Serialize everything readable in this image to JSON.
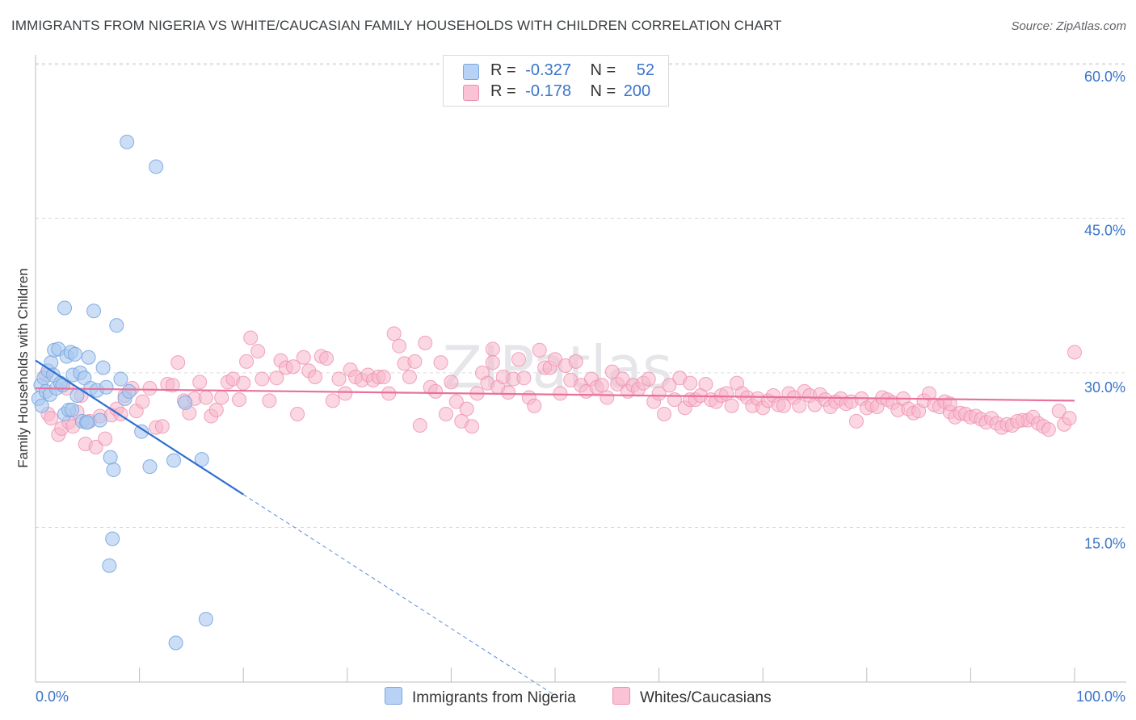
{
  "title": "IMMIGRANTS FROM NIGERIA VS WHITE/CAUCASIAN FAMILY HOUSEHOLDS WITH CHILDREN CORRELATION CHART",
  "source": "Source: ZipAtlas.com",
  "watermark": "ZIPatlas",
  "legend": {
    "rows": [
      {
        "r_label": "R =",
        "r_value": "-0.327",
        "n_label": "N =",
        "n_value": "52"
      },
      {
        "r_label": "R =",
        "r_value": "-0.178",
        "n_label": "N =",
        "n_value": "200"
      }
    ]
  },
  "chart_data": {
    "type": "scatter",
    "title": "IMMIGRANTS FROM NIGERIA VS WHITE/CAUCASIAN FAMILY HOUSEHOLDS WITH CHILDREN CORRELATION CHART",
    "xlabel": "",
    "ylabel": "Family Households with Children",
    "xlim": [
      0,
      100
    ],
    "ylim": [
      0,
      62
    ],
    "x_tick_labels": [
      "0.0%",
      "100.0%"
    ],
    "y_ticks": [
      15,
      30,
      45,
      60
    ],
    "y_tick_labels": [
      "15.0%",
      "30.0%",
      "45.0%",
      "60.0%"
    ],
    "colors": {
      "nigeria": "#a8c8f0",
      "nigeria_edge": "#7aa6e0",
      "white": "#f7b6cb",
      "white_edge": "#ee8fb0",
      "nigeria_line": "#2f6fd0",
      "white_line": "#e8709a"
    },
    "series": [
      {
        "name": "Immigrants from Nigeria",
        "r": -0.327,
        "n": 52,
        "trend": {
          "x0": 0,
          "y0": 31.2,
          "x1": 20,
          "y1": 18.2,
          "dash_to_x": 50
        },
        "points": [
          [
            0.3,
            27.5
          ],
          [
            0.5,
            28.8
          ],
          [
            0.6,
            26.8
          ],
          [
            0.8,
            29.5
          ],
          [
            1.0,
            28.2
          ],
          [
            1.2,
            30.2
          ],
          [
            1.4,
            27.9
          ],
          [
            1.5,
            31.0
          ],
          [
            1.7,
            29.8
          ],
          [
            1.8,
            32.2
          ],
          [
            2.0,
            28.5
          ],
          [
            2.2,
            32.3
          ],
          [
            2.4,
            29.0
          ],
          [
            2.6,
            28.8
          ],
          [
            2.8,
            26.0
          ],
          [
            3.0,
            31.6
          ],
          [
            3.2,
            26.4
          ],
          [
            3.4,
            32.0
          ],
          [
            3.6,
            29.8
          ],
          [
            3.8,
            31.8
          ],
          [
            4.0,
            27.8
          ],
          [
            4.3,
            30.0
          ],
          [
            4.5,
            25.3
          ],
          [
            4.7,
            29.5
          ],
          [
            4.9,
            25.2
          ],
          [
            5.1,
            31.5
          ],
          [
            5.3,
            28.5
          ],
          [
            5.6,
            36.0
          ],
          [
            5.9,
            28.3
          ],
          [
            6.2,
            25.4
          ],
          [
            6.5,
            30.5
          ],
          [
            6.8,
            28.6
          ],
          [
            7.2,
            21.8
          ],
          [
            7.5,
            20.6
          ],
          [
            7.8,
            34.6
          ],
          [
            8.2,
            29.4
          ],
          [
            8.6,
            27.5
          ],
          [
            9.0,
            28.2
          ],
          [
            2.8,
            36.3
          ],
          [
            7.4,
            13.9
          ],
          [
            7.1,
            11.3
          ],
          [
            10.2,
            24.3
          ],
          [
            11.0,
            20.9
          ],
          [
            13.3,
            21.5
          ],
          [
            14.4,
            27.1
          ],
          [
            16.0,
            21.6
          ],
          [
            16.4,
            6.1
          ],
          [
            8.8,
            52.4
          ],
          [
            11.6,
            50.0
          ],
          [
            13.5,
            3.8
          ],
          [
            3.5,
            26.4
          ],
          [
            5.0,
            25.2
          ]
        ]
      },
      {
        "name": "Whites/Caucasians",
        "r": -0.178,
        "n": 200,
        "trend": {
          "x0": 0,
          "y0": 28.5,
          "x1": 100,
          "y1": 27.3
        },
        "points": [
          [
            1.0,
            29.8
          ],
          [
            1.2,
            26.0
          ],
          [
            1.5,
            25.6
          ],
          [
            2.2,
            24.0
          ],
          [
            2.5,
            24.6
          ],
          [
            3.0,
            28.5
          ],
          [
            3.2,
            25.2
          ],
          [
            3.6,
            24.8
          ],
          [
            4.0,
            26.2
          ],
          [
            4.4,
            27.8
          ],
          [
            4.8,
            23.1
          ],
          [
            5.2,
            25.3
          ],
          [
            5.8,
            22.8
          ],
          [
            6.2,
            25.8
          ],
          [
            6.7,
            23.6
          ],
          [
            7.3,
            25.9
          ],
          [
            7.8,
            26.5
          ],
          [
            8.2,
            26.0
          ],
          [
            8.6,
            27.8
          ],
          [
            9.3,
            28.5
          ],
          [
            9.7,
            26.3
          ],
          [
            10.3,
            27.2
          ],
          [
            11.0,
            28.5
          ],
          [
            11.6,
            24.7
          ],
          [
            12.2,
            24.8
          ],
          [
            12.7,
            28.9
          ],
          [
            13.2,
            28.8
          ],
          [
            13.7,
            31.0
          ],
          [
            14.3,
            27.3
          ],
          [
            14.8,
            26.1
          ],
          [
            15.3,
            27.5
          ],
          [
            15.8,
            29.1
          ],
          [
            16.4,
            27.6
          ],
          [
            16.9,
            25.8
          ],
          [
            17.4,
            26.4
          ],
          [
            17.9,
            27.6
          ],
          [
            18.5,
            29.1
          ],
          [
            19.0,
            29.4
          ],
          [
            19.6,
            27.4
          ],
          [
            20.3,
            31.1
          ],
          [
            20.7,
            33.4
          ],
          [
            21.4,
            32.1
          ],
          [
            21.8,
            29.4
          ],
          [
            22.5,
            27.3
          ],
          [
            23.2,
            29.5
          ],
          [
            23.6,
            31.2
          ],
          [
            24.1,
            30.5
          ],
          [
            24.8,
            30.6
          ],
          [
            25.2,
            26.0
          ],
          [
            25.8,
            31.5
          ],
          [
            26.3,
            30.2
          ],
          [
            26.9,
            29.6
          ],
          [
            27.5,
            31.6
          ],
          [
            28.0,
            31.4
          ],
          [
            28.6,
            27.3
          ],
          [
            29.2,
            29.4
          ],
          [
            29.8,
            28.0
          ],
          [
            30.3,
            30.3
          ],
          [
            30.8,
            29.6
          ],
          [
            31.4,
            29.3
          ],
          [
            32.0,
            29.8
          ],
          [
            32.5,
            29.3
          ],
          [
            33.0,
            29.6
          ],
          [
            33.5,
            29.6
          ],
          [
            34.0,
            28.0
          ],
          [
            34.5,
            33.8
          ],
          [
            35.0,
            32.6
          ],
          [
            35.5,
            30.9
          ],
          [
            36.0,
            29.6
          ],
          [
            36.5,
            31.1
          ],
          [
            37.0,
            24.9
          ],
          [
            37.5,
            32.9
          ],
          [
            38.0,
            28.6
          ],
          [
            38.5,
            28.2
          ],
          [
            39.0,
            31.0
          ],
          [
            39.5,
            26.0
          ],
          [
            40.0,
            29.1
          ],
          [
            40.5,
            27.2
          ],
          [
            41.0,
            25.3
          ],
          [
            41.5,
            26.5
          ],
          [
            42.0,
            24.8
          ],
          [
            42.5,
            28.0
          ],
          [
            43.0,
            30.0
          ],
          [
            43.5,
            29.0
          ],
          [
            44.0,
            32.3
          ],
          [
            44.5,
            28.6
          ],
          [
            45.0,
            29.6
          ],
          [
            45.5,
            28.1
          ],
          [
            46.0,
            29.4
          ],
          [
            46.5,
            31.3
          ],
          [
            47.0,
            29.5
          ],
          [
            47.5,
            27.6
          ],
          [
            48.0,
            26.8
          ],
          [
            48.5,
            32.2
          ],
          [
            49.0,
            30.5
          ],
          [
            49.5,
            30.5
          ],
          [
            50.0,
            31.3
          ],
          [
            50.5,
            28.0
          ],
          [
            51.0,
            30.7
          ],
          [
            51.5,
            29.3
          ],
          [
            52.0,
            31.1
          ],
          [
            52.5,
            28.8
          ],
          [
            53.0,
            28.2
          ],
          [
            53.5,
            29.4
          ],
          [
            54.0,
            28.6
          ],
          [
            54.5,
            28.8
          ],
          [
            55.0,
            27.6
          ],
          [
            55.5,
            30.1
          ],
          [
            56.0,
            28.9
          ],
          [
            56.5,
            29.4
          ],
          [
            57.0,
            28.2
          ],
          [
            57.5,
            28.8
          ],
          [
            58.0,
            28.4
          ],
          [
            58.5,
            29.0
          ],
          [
            59.0,
            29.4
          ],
          [
            59.5,
            27.2
          ],
          [
            60.0,
            28.0
          ],
          [
            60.5,
            26.0
          ],
          [
            61.0,
            28.8
          ],
          [
            61.5,
            27.4
          ],
          [
            62.0,
            29.5
          ],
          [
            62.5,
            26.6
          ],
          [
            63.0,
            27.4
          ],
          [
            63.5,
            27.4
          ],
          [
            64.0,
            27.8
          ],
          [
            64.5,
            28.9
          ],
          [
            65.0,
            27.4
          ],
          [
            65.5,
            27.2
          ],
          [
            66.0,
            27.8
          ],
          [
            66.5,
            28.0
          ],
          [
            67.0,
            26.8
          ],
          [
            67.5,
            29.0
          ],
          [
            68.0,
            28.0
          ],
          [
            68.5,
            27.6
          ],
          [
            69.0,
            26.8
          ],
          [
            69.5,
            27.5
          ],
          [
            70.0,
            26.6
          ],
          [
            70.5,
            27.3
          ],
          [
            71.0,
            27.8
          ],
          [
            71.5,
            26.9
          ],
          [
            72.0,
            26.8
          ],
          [
            72.5,
            28.0
          ],
          [
            73.0,
            27.6
          ],
          [
            73.5,
            26.8
          ],
          [
            74.0,
            28.2
          ],
          [
            74.5,
            27.8
          ],
          [
            75.0,
            26.9
          ],
          [
            75.5,
            27.9
          ],
          [
            76.0,
            27.4
          ],
          [
            76.5,
            26.7
          ],
          [
            77.0,
            27.2
          ],
          [
            77.5,
            27.5
          ],
          [
            78.0,
            27.0
          ],
          [
            78.5,
            27.2
          ],
          [
            79.0,
            25.3
          ],
          [
            79.5,
            27.5
          ],
          [
            80.0,
            26.6
          ],
          [
            80.5,
            26.9
          ],
          [
            81.0,
            26.7
          ],
          [
            81.5,
            27.6
          ],
          [
            82.0,
            27.4
          ],
          [
            82.5,
            27.1
          ],
          [
            83.0,
            26.4
          ],
          [
            83.5,
            27.5
          ],
          [
            84.0,
            26.5
          ],
          [
            84.5,
            26.1
          ],
          [
            85.0,
            26.3
          ],
          [
            85.5,
            27.3
          ],
          [
            86.0,
            28.0
          ],
          [
            86.5,
            26.9
          ],
          [
            87.0,
            26.7
          ],
          [
            87.5,
            27.2
          ],
          [
            88.0,
            26.2
          ],
          [
            88.5,
            25.7
          ],
          [
            89.0,
            26.1
          ],
          [
            89.5,
            26.0
          ],
          [
            90.0,
            25.7
          ],
          [
            90.5,
            25.8
          ],
          [
            91.0,
            25.5
          ],
          [
            91.5,
            25.2
          ],
          [
            92.0,
            25.6
          ],
          [
            92.5,
            25.1
          ],
          [
            93.0,
            24.7
          ],
          [
            93.5,
            25.0
          ],
          [
            94.0,
            24.9
          ],
          [
            95.0,
            25.4
          ],
          [
            95.5,
            25.4
          ],
          [
            96.0,
            25.7
          ],
          [
            96.5,
            25.1
          ],
          [
            97.0,
            24.8
          ],
          [
            97.5,
            24.5
          ],
          [
            98.5,
            26.3
          ],
          [
            99.0,
            25.0
          ],
          [
            99.5,
            25.6
          ],
          [
            100.0,
            32.0
          ],
          [
            20.0,
            29.0
          ],
          [
            44.0,
            31.0
          ],
          [
            63.0,
            29.0
          ],
          [
            88.0,
            27.0
          ],
          [
            94.5,
            25.3
          ]
        ]
      }
    ],
    "legend_labels": [
      "Immigrants from Nigeria",
      "Whites/Caucasians"
    ]
  }
}
